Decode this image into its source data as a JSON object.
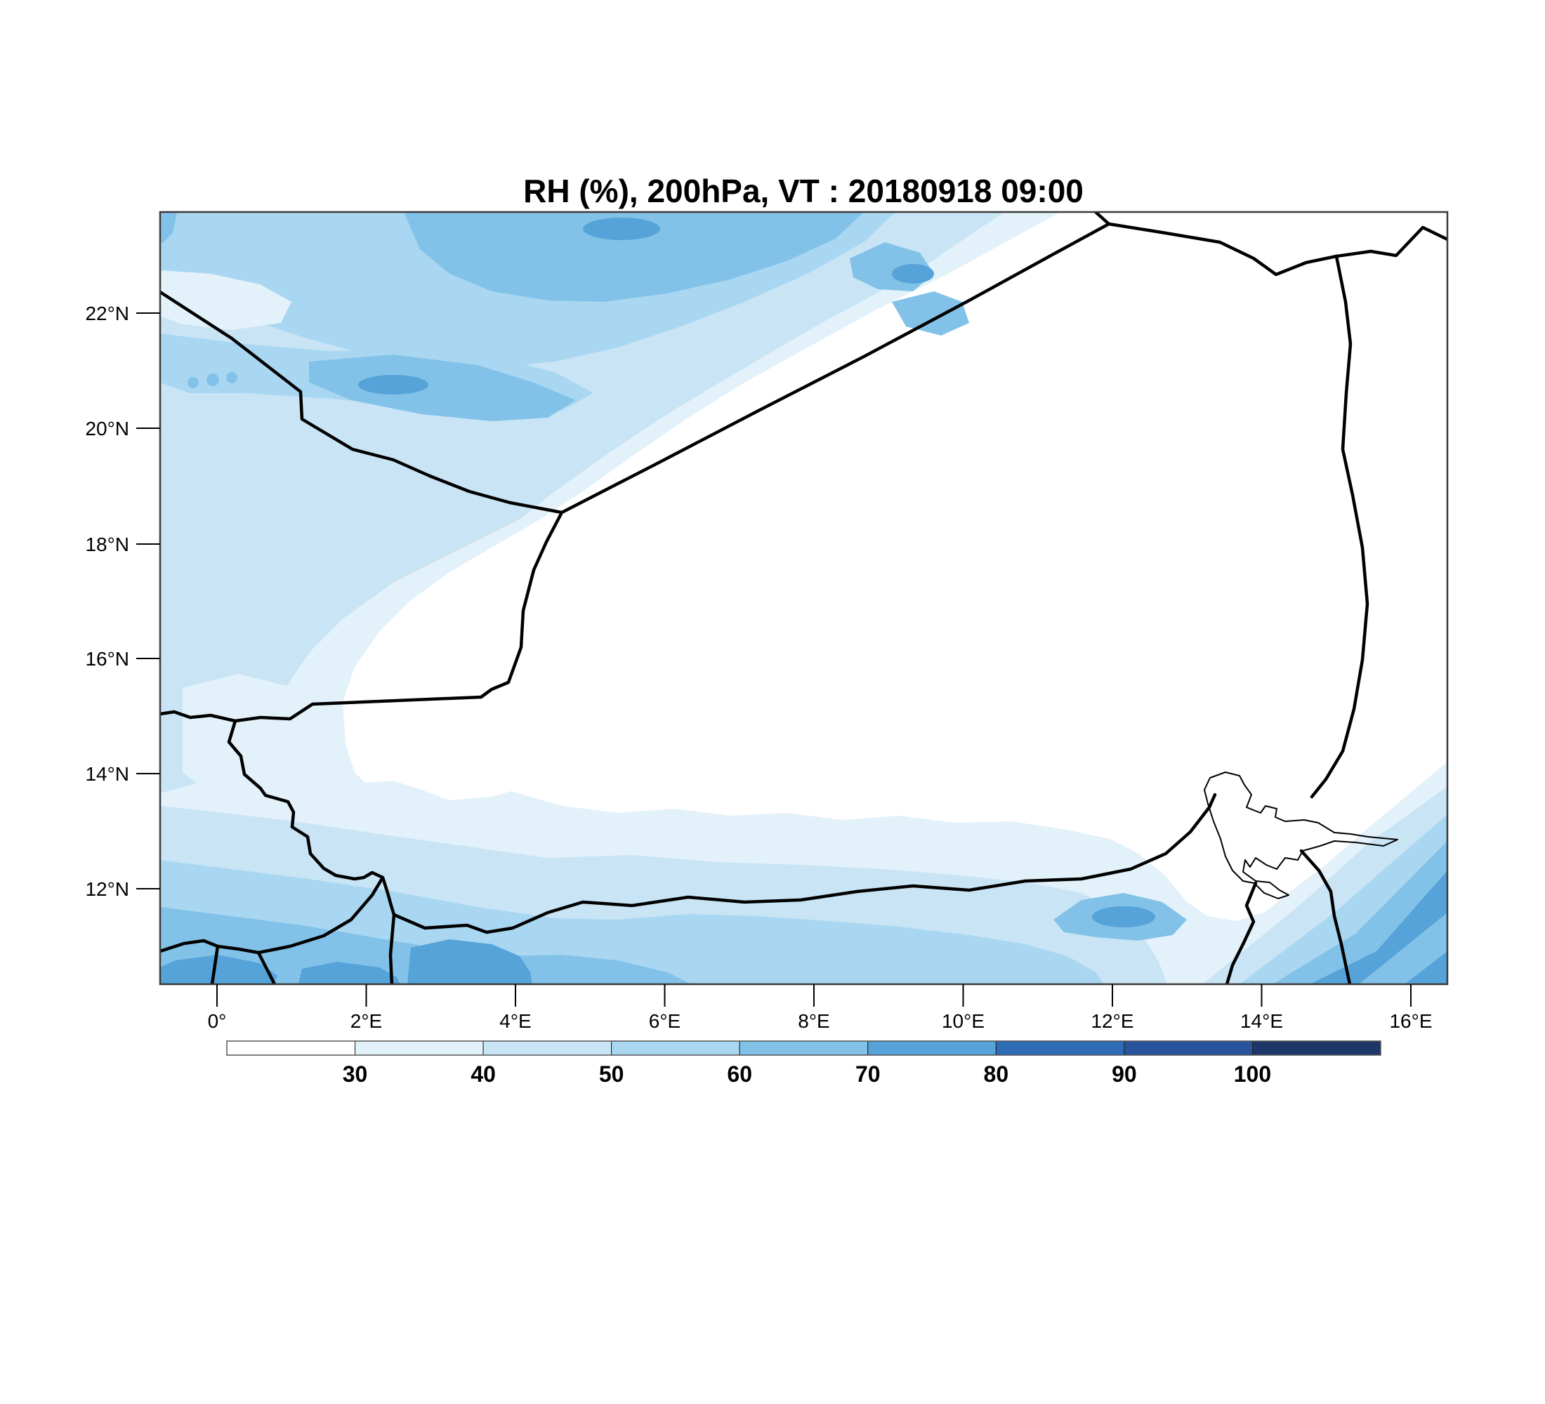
{
  "title": "RH (%), 200hPa, VT : 20180918  09:00",
  "map": {
    "lat_ticks": [
      "22°N",
      "20°N",
      "18°N",
      "16°N",
      "14°N",
      "12°N"
    ],
    "lon_ticks": [
      "0°",
      "2°E",
      "4°E",
      "6°E",
      "8°E",
      "10°E",
      "12°E",
      "14°E",
      "16°E"
    ]
  },
  "colorbar": {
    "tick_labels": [
      "30",
      "40",
      "50",
      "60",
      "70",
      "80",
      "90",
      "100"
    ],
    "segment_colors": [
      "#ffffff",
      "#e3f1fa",
      "#c9e5f5",
      "#a9d7f1",
      "#83c2e8",
      "#55a3d8",
      "#2e6db6",
      "#27549d",
      "#1d3868"
    ]
  },
  "chart_data": {
    "type": "heatmap",
    "title": "RH (%), 200hPa, VT : 20180918  09:00",
    "variable": "RH (%)",
    "level": "200hPa",
    "valid_time": "20180918 09:00",
    "x_tick_labels": [
      "0°",
      "2°E",
      "4°E",
      "6°E",
      "8°E",
      "10°E",
      "12°E",
      "14°E",
      "16°E"
    ],
    "y_tick_labels": [
      "22°N",
      "20°N",
      "18°N",
      "16°N",
      "14°N",
      "12°N"
    ],
    "contour_levels": [
      30,
      40,
      50,
      60,
      70,
      80,
      90,
      100
    ],
    "palette": [
      "#ffffff",
      "#e3f1fa",
      "#c9e5f5",
      "#a9d7f1",
      "#83c2e8",
      "#55a3d8",
      "#2e6db6",
      "#27549d",
      "#1d3868"
    ],
    "legend_position": "bottom",
    "region": "West Africa / Niger (approx. 1°W–16.5°E, 10.3°N–23.8°N) with country borders and Lake Chad outline",
    "pattern": "RH below 30% over central and eastern Niger; 40–70% over the northwest (Algeria/Mali); 50–80% band along the southern edge (~11°N); diagonal high-RH bands up to 80% in the southeast corner near Lake Chad/Cameroon"
  }
}
